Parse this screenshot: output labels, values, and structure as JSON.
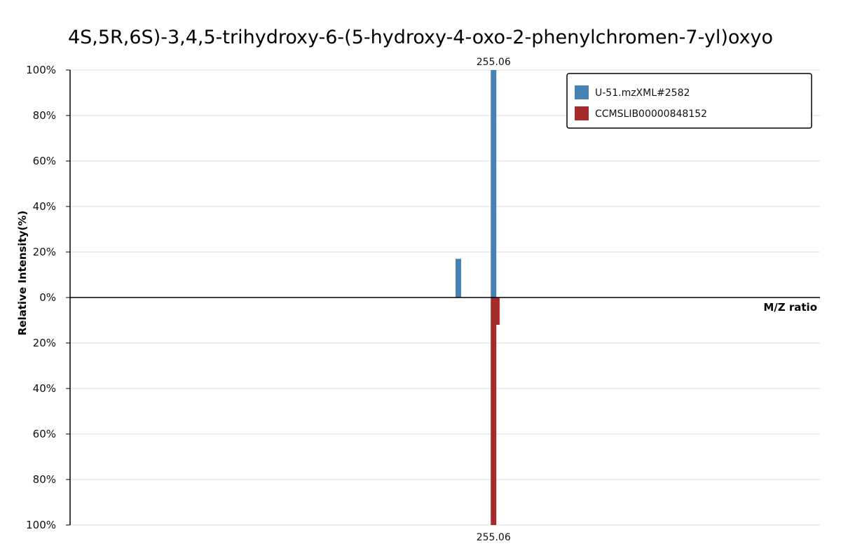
{
  "chart_data": {
    "type": "bar",
    "title": "4S,5R,6S)-3,4,5-trihydroxy-6-(5-hydroxy-4-oxo-2-phenylchromen-7-yl)oxyo",
    "xlabel": "M/Z ratio",
    "ylabel": "Relative Intensity(%)",
    "ylim": [
      -100,
      100
    ],
    "xlim": [
      80,
      390
    ],
    "y_ticks": [
      "100%",
      "80%",
      "60%",
      "40%",
      "20%",
      "0%",
      "20%",
      "40%",
      "60%",
      "80%",
      "100%"
    ],
    "grid": true,
    "legend_position": "top-right",
    "mirrored": true,
    "series": [
      {
        "name": "U-51.mzXML#2582",
        "color": "#4682b4",
        "direction": "up",
        "peaks": [
          {
            "mz": 240.5,
            "intensity": 17
          },
          {
            "mz": 255.06,
            "intensity": 100,
            "label": "255.06"
          }
        ]
      },
      {
        "name": "CCMSLIB00000848152",
        "color": "#a52a2a",
        "direction": "down",
        "peaks": [
          {
            "mz": 255.06,
            "intensity": 100,
            "label": "255.06"
          },
          {
            "mz": 256.4,
            "intensity": 12
          }
        ]
      }
    ]
  }
}
